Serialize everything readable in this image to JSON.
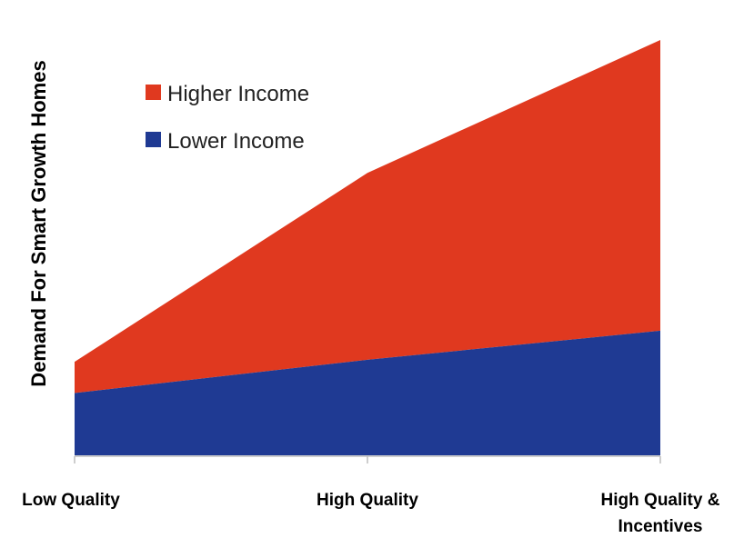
{
  "chart_data": {
    "type": "area",
    "stacked": true,
    "title": "",
    "xlabel": "",
    "ylabel": "Demand For Smart Growth Homes",
    "categories": [
      "Low Quality",
      "High Quality",
      "High Quality & Incentives"
    ],
    "ylim": [
      0,
      100
    ],
    "y_ticks_shown": false,
    "grid": false,
    "legend_position": "top-left",
    "series": [
      {
        "name": "Lower Income",
        "values": [
          15,
          23,
          30
        ],
        "color": "#1f3a93"
      },
      {
        "name": "Higher Income",
        "values": [
          7.5,
          45,
          70
        ],
        "color": "#e0391f"
      }
    ]
  }
}
